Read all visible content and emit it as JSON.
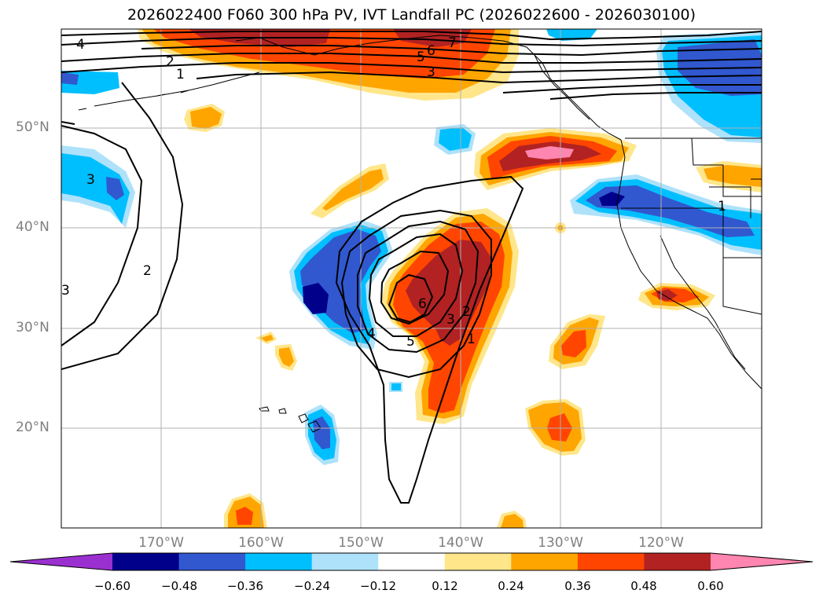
{
  "title": "2026022400 F060 300 hPa PV, IVT Landfall PC (2026022600 - 2026030100)",
  "map": {
    "lat_labels": [
      "50°N",
      "40°N",
      "30°N",
      "20°N"
    ],
    "lon_labels": [
      "170°W",
      "160°W",
      "150°W",
      "140°W",
      "130°W",
      "120°W"
    ],
    "contour_labels": [
      "4",
      "2",
      "1",
      "7",
      "6",
      "5",
      "3",
      "3",
      "2",
      "1",
      "4",
      "5",
      "6",
      "3",
      "2",
      "1",
      "3"
    ]
  },
  "colorbar": {
    "ticks": [
      "−0.60",
      "−0.48",
      "−0.36",
      "−0.24",
      "−0.12",
      "0.12",
      "0.24",
      "0.36",
      "0.48",
      "0.60"
    ],
    "colors": [
      "#9b30d0",
      "#00008b",
      "#3158cf",
      "#00bfff",
      "#aee2fa",
      "#ffffff",
      "#ffe68a",
      "#ffa500",
      "#ff4500",
      "#b22222",
      "#ff86b0"
    ]
  }
}
